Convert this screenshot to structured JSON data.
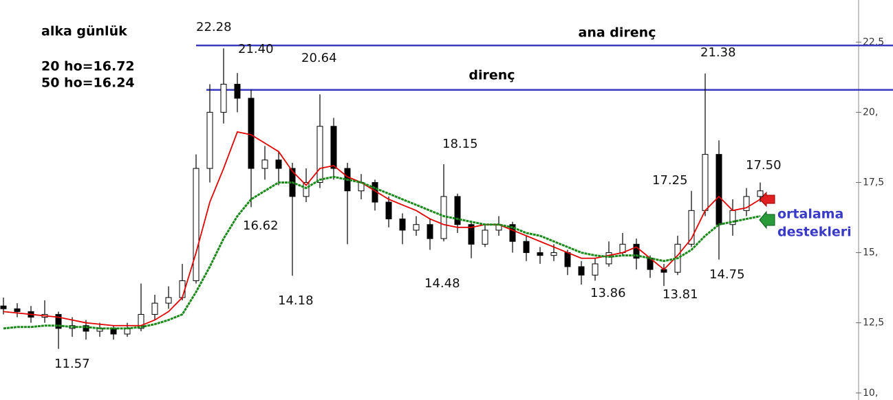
{
  "chart_data": {
    "type": "candlestick",
    "title": "alka günlük",
    "open": [
      13.1,
      13.0,
      12.9,
      12.7,
      12.8,
      12.3,
      12.4,
      12.2,
      12.3,
      12.1,
      12.3,
      12.8,
      13.2,
      13.4,
      14.0,
      18.0,
      20.0,
      21.0,
      20.5,
      18.0,
      18.3,
      18.0,
      17.0,
      17.5,
      19.5,
      18.0,
      17.2,
      17.5,
      16.8,
      16.2,
      15.8,
      16.0,
      15.5,
      17.0,
      16.0,
      15.3,
      15.8,
      16.0,
      15.4,
      15.0,
      14.9,
      15.0,
      14.5,
      14.2,
      14.6,
      15.0,
      15.3,
      14.8,
      14.4,
      14.3,
      15.3,
      16.5,
      18.5,
      16.0,
      16.5,
      17.0
    ],
    "high": [
      13.4,
      13.2,
      13.1,
      13.3,
      12.9,
      12.7,
      12.6,
      12.5,
      12.4,
      12.5,
      13.9,
      13.5,
      13.8,
      14.6,
      18.5,
      21.0,
      22.28,
      21.4,
      20.8,
      18.8,
      18.6,
      18.2,
      18.0,
      20.64,
      19.8,
      18.2,
      17.8,
      17.6,
      17.0,
      16.4,
      16.3,
      16.2,
      18.15,
      17.1,
      16.1,
      16.0,
      16.3,
      16.1,
      15.6,
      15.2,
      15.3,
      15.1,
      14.7,
      14.8,
      15.4,
      15.7,
      15.5,
      14.9,
      14.6,
      15.6,
      17.2,
      21.38,
      19.0,
      16.9,
      17.3,
      17.5
    ],
    "low": [
      12.8,
      12.7,
      12.5,
      12.5,
      11.57,
      12.0,
      11.9,
      12.0,
      11.9,
      12.0,
      12.2,
      12.6,
      13.0,
      13.3,
      13.9,
      17.5,
      19.6,
      20.0,
      16.62,
      17.6,
      17.4,
      14.18,
      16.8,
      17.3,
      17.6,
      15.3,
      16.9,
      16.5,
      15.9,
      15.3,
      15.6,
      15.1,
      15.4,
      15.7,
      14.8,
      15.2,
      15.6,
      15.0,
      14.7,
      14.6,
      14.7,
      14.2,
      13.86,
      14.0,
      14.5,
      14.9,
      14.4,
      14.1,
      13.81,
      14.2,
      15.2,
      16.3,
      14.75,
      15.6,
      16.3,
      16.8
    ],
    "close": [
      13.0,
      12.9,
      12.7,
      12.8,
      12.3,
      12.4,
      12.2,
      12.3,
      12.1,
      12.3,
      12.8,
      13.2,
      13.4,
      14.0,
      18.0,
      20.0,
      21.0,
      20.5,
      18.0,
      18.3,
      18.0,
      17.0,
      17.5,
      19.5,
      18.0,
      17.2,
      17.5,
      16.8,
      16.2,
      15.8,
      16.0,
      15.5,
      17.0,
      16.0,
      15.3,
      15.8,
      16.0,
      15.4,
      15.0,
      14.9,
      15.0,
      14.5,
      14.2,
      14.6,
      15.0,
      15.3,
      14.8,
      14.4,
      14.3,
      15.3,
      16.5,
      18.5,
      16.0,
      16.5,
      17.0,
      17.2
    ],
    "series": [
      {
        "name": "20 ho=16.72",
        "color": "#e00000",
        "values": [
          12.9,
          12.85,
          12.8,
          12.75,
          12.7,
          12.6,
          12.5,
          12.45,
          12.4,
          12.4,
          12.4,
          12.6,
          12.9,
          13.4,
          15.0,
          16.8,
          18.0,
          19.3,
          19.2,
          18.9,
          18.6,
          17.9,
          17.4,
          18.0,
          18.1,
          17.7,
          17.5,
          17.2,
          16.9,
          16.7,
          16.5,
          16.2,
          16.0,
          15.9,
          15.9,
          16.0,
          16.0,
          15.8,
          15.6,
          15.4,
          15.2,
          15.0,
          14.8,
          14.8,
          14.9,
          15.0,
          15.2,
          14.8,
          14.4,
          14.9,
          15.5,
          16.5,
          17.0,
          16.5,
          16.6,
          16.9
        ]
      },
      {
        "name": "50 ho=16.24",
        "color": "#1a8a1a",
        "values": [
          12.3,
          12.35,
          12.35,
          12.4,
          12.4,
          12.35,
          12.35,
          12.3,
          12.3,
          12.3,
          12.35,
          12.45,
          12.6,
          12.8,
          13.6,
          14.5,
          15.5,
          16.3,
          16.9,
          17.2,
          17.5,
          17.5,
          17.3,
          17.6,
          17.7,
          17.6,
          17.5,
          17.3,
          17.1,
          16.9,
          16.7,
          16.5,
          16.3,
          16.2,
          16.1,
          16.0,
          16.0,
          15.9,
          15.7,
          15.6,
          15.4,
          15.2,
          15.0,
          14.9,
          14.85,
          14.9,
          14.9,
          14.8,
          14.7,
          14.8,
          15.1,
          15.6,
          16.0,
          16.1,
          16.2,
          16.3
        ]
      }
    ],
    "hlines": [
      {
        "label": "ana direnç",
        "value": 22.38,
        "color": "#3a3ac0"
      },
      {
        "label": "direnç",
        "value": 20.8,
        "color": "#3a3ac0"
      }
    ],
    "annotations": [
      "22.28",
      "21.40",
      "20.64",
      "18.15",
      "16.62",
      "14.18",
      "14.48",
      "11.57",
      "13.86",
      "13.81",
      "17.25",
      "21.38",
      "14.75",
      "17.50"
    ],
    "side_note": [
      "ortalama",
      "destekleri"
    ],
    "ylim": [
      9.75,
      24.0
    ],
    "yticks": [
      {
        "value": 10,
        "label": "10,"
      },
      {
        "value": 12.5,
        "label": "12,5"
      },
      {
        "value": 15,
        "label": "15,"
      },
      {
        "value": 17.5,
        "label": "17,5"
      },
      {
        "value": 20,
        "label": "20,"
      },
      {
        "value": 22.5,
        "label": "22,5"
      }
    ]
  }
}
